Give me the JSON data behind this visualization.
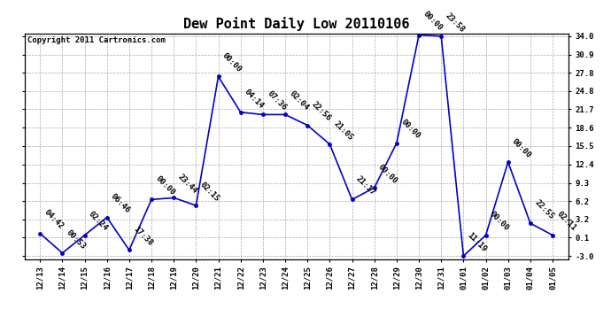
{
  "title": "Dew Point Daily Low 20110106",
  "copyright": "Copyright 2011 Cartronics.com",
  "x_labels": [
    "12/13",
    "12/14",
    "12/15",
    "12/16",
    "12/17",
    "12/18",
    "12/19",
    "12/20",
    "12/21",
    "12/22",
    "12/23",
    "12/24",
    "12/25",
    "12/26",
    "12/27",
    "12/28",
    "12/29",
    "12/30",
    "12/31",
    "01/01",
    "01/02",
    "01/03",
    "01/04",
    "01/05"
  ],
  "y_values": [
    0.8,
    -2.5,
    0.5,
    3.5,
    -2.0,
    6.5,
    6.8,
    5.5,
    27.2,
    21.2,
    20.8,
    20.8,
    19.0,
    15.8,
    6.5,
    8.5,
    16.0,
    34.2,
    34.0,
    -3.0,
    0.5,
    12.8,
    2.5,
    0.5
  ],
  "time_labels": [
    "04:42",
    "00:53",
    "02:24",
    "06:46",
    "17:38",
    "00:00",
    "23:44",
    "02:15",
    "00:00",
    "04:14",
    "07:36",
    "02:04",
    "22:56",
    "21:05",
    "21:17",
    "00:00",
    "00:00",
    "00:00",
    "23:58",
    "11:19",
    "00:00",
    "00:00",
    "22:55",
    "02:11"
  ],
  "line_color": "#0000cc",
  "marker_color": "#0000cc",
  "background_color": "#ffffff",
  "grid_color": "#aaaaaa",
  "ylim_min": -3.5,
  "ylim_max": 34.5,
  "yticks": [
    -3.0,
    0.1,
    3.2,
    6.2,
    9.3,
    12.4,
    15.5,
    18.6,
    21.7,
    24.8,
    27.8,
    30.9,
    34.0
  ],
  "ytick_labels": [
    "-3.0",
    "0.1",
    "3.2",
    "6.2",
    "9.3",
    "12.4",
    "15.5",
    "18.6",
    "21.7",
    "24.8",
    "27.8",
    "30.9",
    "34.0"
  ],
  "title_fontsize": 11,
  "tick_fontsize": 6.5,
  "label_fontsize": 6.5,
  "copyright_fontsize": 6.5
}
